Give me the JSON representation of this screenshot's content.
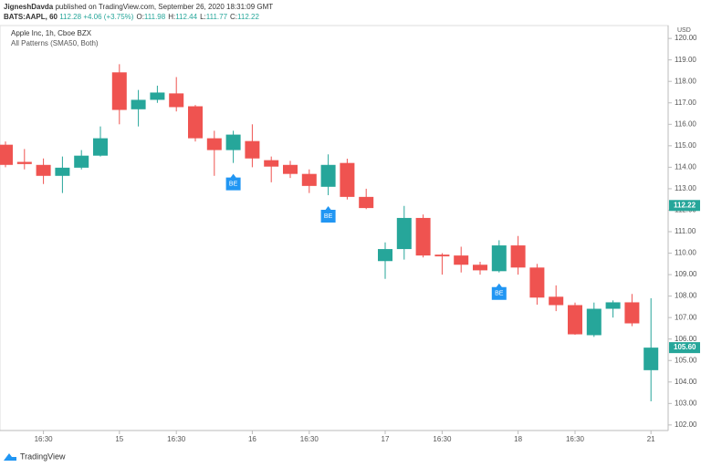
{
  "header": {
    "author": "JigneshDavda",
    "published": "published on TradingView.com, September 26, 2020 18:31:09 GMT",
    "symbol": "BATS:AAPL, 60",
    "price": 112.28,
    "change": "+4.06 (+3.75%)",
    "ohlc": [
      {
        "label": "O:",
        "value": 111.98
      },
      {
        "label": "H:",
        "value": 112.44
      },
      {
        "label": "L:",
        "value": 111.77
      },
      {
        "label": "C:",
        "value": 112.22
      }
    ]
  },
  "chart_data": {
    "type": "candlestick",
    "title": "Apple Inc, 1h, Cboe BZX",
    "subtitle": "All Patterns (SMA50, Both)",
    "unit": "USD",
    "categories": [
      null,
      null,
      "16:30",
      null,
      null,
      null,
      "15",
      null,
      null,
      "16:30",
      null,
      null,
      null,
      "16",
      null,
      null,
      "16:30",
      null,
      null,
      null,
      "17",
      null,
      null,
      "16:30",
      null,
      null,
      null,
      "18",
      null,
      null,
      "16:30",
      null,
      null,
      null,
      "21"
    ],
    "open": [
      115.05,
      114.25,
      114.11,
      113.6,
      113.98,
      114.54,
      118.42,
      116.7,
      117.14,
      117.44,
      116.84,
      115.35,
      114.8,
      115.22,
      114.33,
      114.11,
      113.69,
      113.09,
      114.2,
      112.62,
      109.63,
      110.19,
      111.64,
      109.93,
      109.89,
      109.46,
      109.16,
      110.36,
      109.33,
      107.97,
      107.58,
      106.18,
      107.41,
      107.71,
      104.55
    ],
    "high": [
      115.2,
      114.85,
      114.41,
      114.5,
      114.8,
      115.9,
      118.8,
      117.6,
      117.8,
      118.2,
      116.9,
      115.7,
      115.7,
      116.0,
      114.5,
      114.3,
      113.9,
      114.6,
      114.4,
      113.0,
      110.5,
      112.2,
      111.8,
      110.0,
      110.3,
      109.6,
      110.6,
      110.8,
      109.5,
      108.5,
      107.7,
      107.7,
      107.8,
      108.1,
      107.9
    ],
    "low": [
      114.0,
      113.9,
      113.22,
      112.8,
      113.9,
      114.5,
      116.0,
      115.9,
      117.0,
      116.6,
      115.2,
      113.6,
      114.2,
      114.0,
      113.3,
      113.5,
      112.8,
      112.7,
      112.5,
      112.05,
      108.8,
      109.7,
      109.8,
      109.0,
      109.1,
      109.0,
      109.1,
      109.0,
      107.6,
      107.3,
      106.2,
      106.1,
      107.0,
      106.6,
      103.1
    ],
    "close": [
      114.11,
      114.15,
      113.6,
      113.98,
      114.54,
      115.35,
      116.67,
      117.14,
      117.48,
      116.8,
      115.35,
      114.8,
      115.52,
      114.41,
      114.03,
      113.69,
      113.13,
      114.11,
      112.62,
      112.1,
      110.19,
      111.64,
      109.89,
      109.85,
      109.46,
      109.2,
      110.36,
      109.33,
      107.93,
      107.58,
      106.22,
      107.41,
      107.71,
      106.73,
      105.6
    ],
    "up_color": "#26a69a",
    "down_color": "#ef5350",
    "marker_color": "#2196f3",
    "markers": [
      {
        "index": 12,
        "text": "BE"
      },
      {
        "index": 17,
        "text": "BE"
      },
      {
        "index": 26,
        "text": "BE"
      }
    ],
    "price_labels": [
      {
        "value": 112.22,
        "label": "112.22"
      },
      {
        "value": 105.6,
        "label": "105.60"
      }
    ],
    "ylim": [
      101.74,
      120.6
    ],
    "yticks": [
      {
        "value": 120,
        "label": "120.00"
      },
      {
        "value": 119,
        "label": "119.00"
      },
      {
        "value": 118,
        "label": "118.00"
      },
      {
        "value": 117,
        "label": "117.00"
      },
      {
        "value": 116,
        "label": "116.00"
      },
      {
        "value": 115,
        "label": "115.00"
      },
      {
        "value": 114,
        "label": "114.00"
      },
      {
        "value": 113,
        "label": "113.00"
      },
      {
        "value": 112,
        "label": "112.00"
      },
      {
        "value": 111,
        "label": "111.00"
      },
      {
        "value": 110,
        "label": "110.00"
      },
      {
        "value": 109,
        "label": "109.00"
      },
      {
        "value": 108,
        "label": "108.00"
      },
      {
        "value": 107,
        "label": "107.00"
      },
      {
        "value": 106,
        "label": "106.00"
      },
      {
        "value": 105,
        "label": "105.00"
      },
      {
        "value": 104,
        "label": "104.00"
      },
      {
        "value": 103,
        "label": "103.00"
      },
      {
        "value": 102,
        "label": "102.00"
      }
    ],
    "grid": false
  },
  "footer": {
    "brand": "TradingView"
  }
}
